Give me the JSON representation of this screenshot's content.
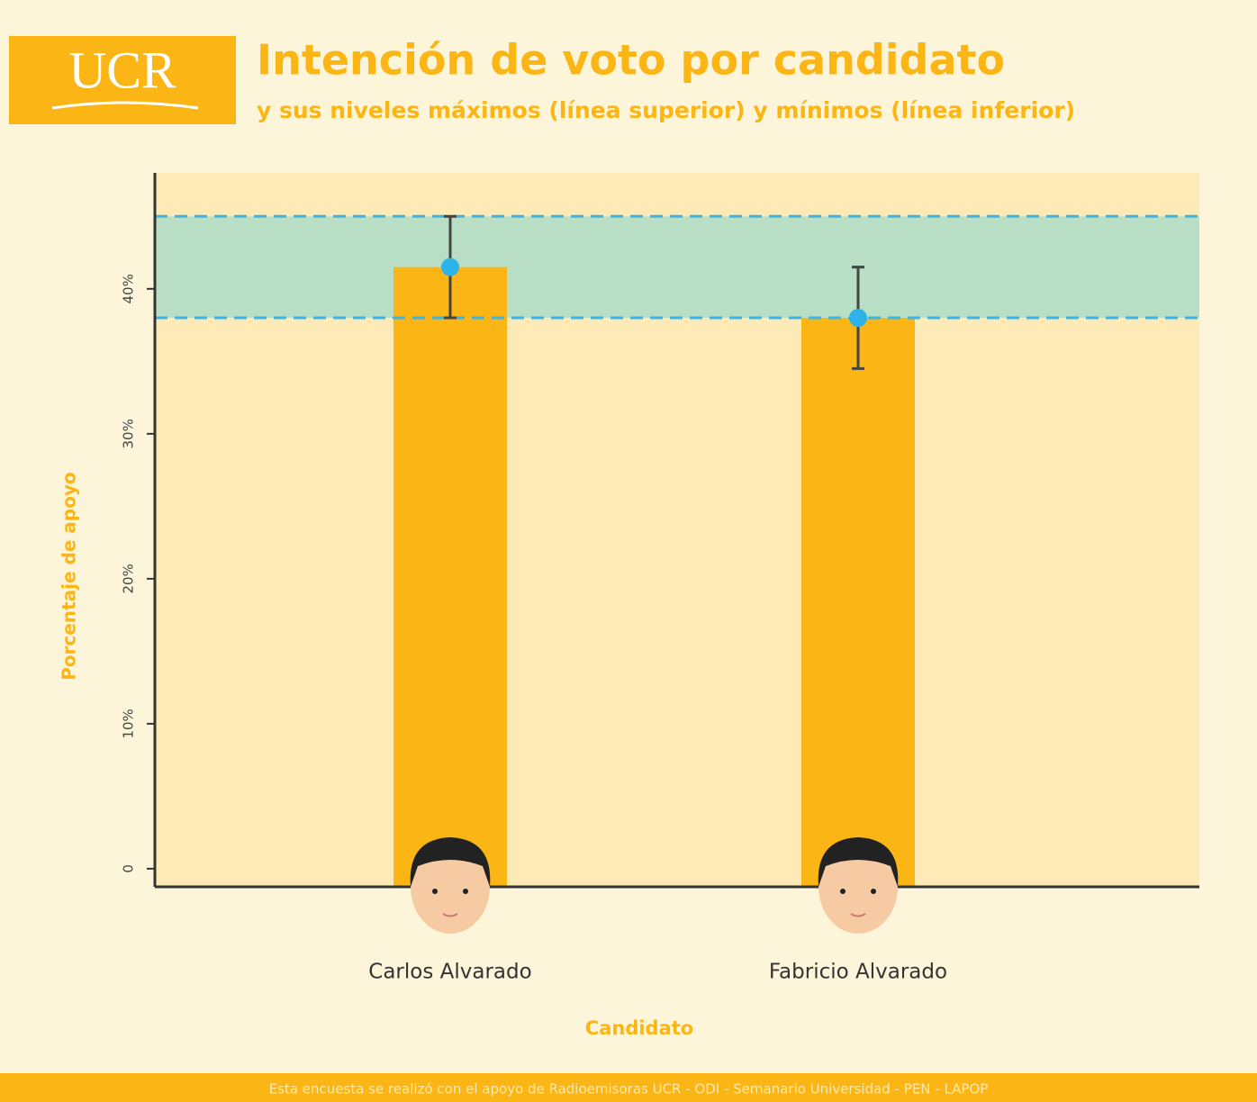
{
  "header": {
    "logo": "UCR"
  },
  "chart_data": {
    "type": "bar",
    "title": "Intención de voto por candidato",
    "subtitle": "y sus niveles máximos (línea superior) y mínimos (línea inferior)",
    "y_label": "Porcentaje de apoyo",
    "x_label": "Candidato",
    "categories": [
      "Carlos Alvarado",
      "Fabricio Alvarado"
    ],
    "values": [
      41.5,
      38
    ],
    "lower": [
      38,
      34.5
    ],
    "upper": [
      45,
      41.5
    ],
    "band": [
      38,
      45
    ],
    "color": "#fbb615",
    "point_color": "#2bb3ea",
    "band_color": "#b8dfc6",
    "band_line_color": "#3ab5e6",
    "ylim": [
      -1.25,
      48
    ],
    "yticks": [
      0,
      {
        "value": 10,
        "label": "10%"
      },
      {
        "value": 20,
        "label": "20%"
      },
      {
        "value": 30,
        "label": "30%"
      },
      {
        "value": 40,
        "label": "40%"
      }
    ]
  },
  "footer": {
    "text": "Esta encuesta se realizó con el apoyo de Radioemisoras UCR - ODI - Semanario Universidad - PEN - LAPOP"
  }
}
